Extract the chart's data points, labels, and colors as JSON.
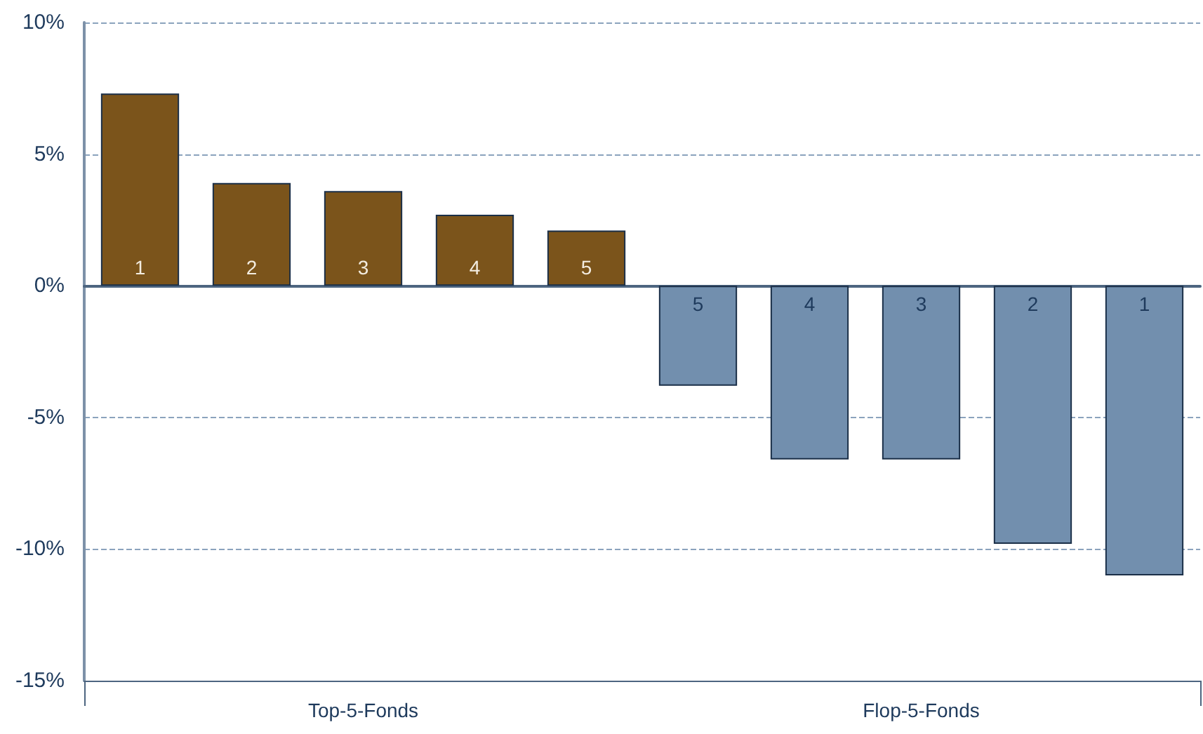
{
  "chart_data": {
    "type": "bar",
    "categories": [
      "1",
      "2",
      "3",
      "4",
      "5",
      "5",
      "4",
      "3",
      "2",
      "1"
    ],
    "values": [
      7.3,
      3.9,
      3.6,
      2.7,
      2.1,
      -3.8,
      -6.6,
      -6.6,
      -9.8,
      -11.0
    ],
    "colors": [
      "#7b541b",
      "#7b541b",
      "#7b541b",
      "#7b541b",
      "#7b541b",
      "#728fae",
      "#728fae",
      "#728fae",
      "#728fae",
      "#728fae"
    ],
    "ylim": [
      -15,
      10
    ],
    "yticks": [
      {
        "value": -15,
        "label": "-15%"
      },
      {
        "value": -10,
        "label": "-10%"
      },
      {
        "value": -5,
        "label": "-5%"
      },
      {
        "value": 0,
        "label": "0%"
      },
      {
        "value": 5,
        "label": "5%"
      },
      {
        "value": 10,
        "label": "10%"
      }
    ],
    "annotations": [
      "Top-5-Fonds",
      "Flop-5-Fonds"
    ],
    "grid": "y"
  }
}
